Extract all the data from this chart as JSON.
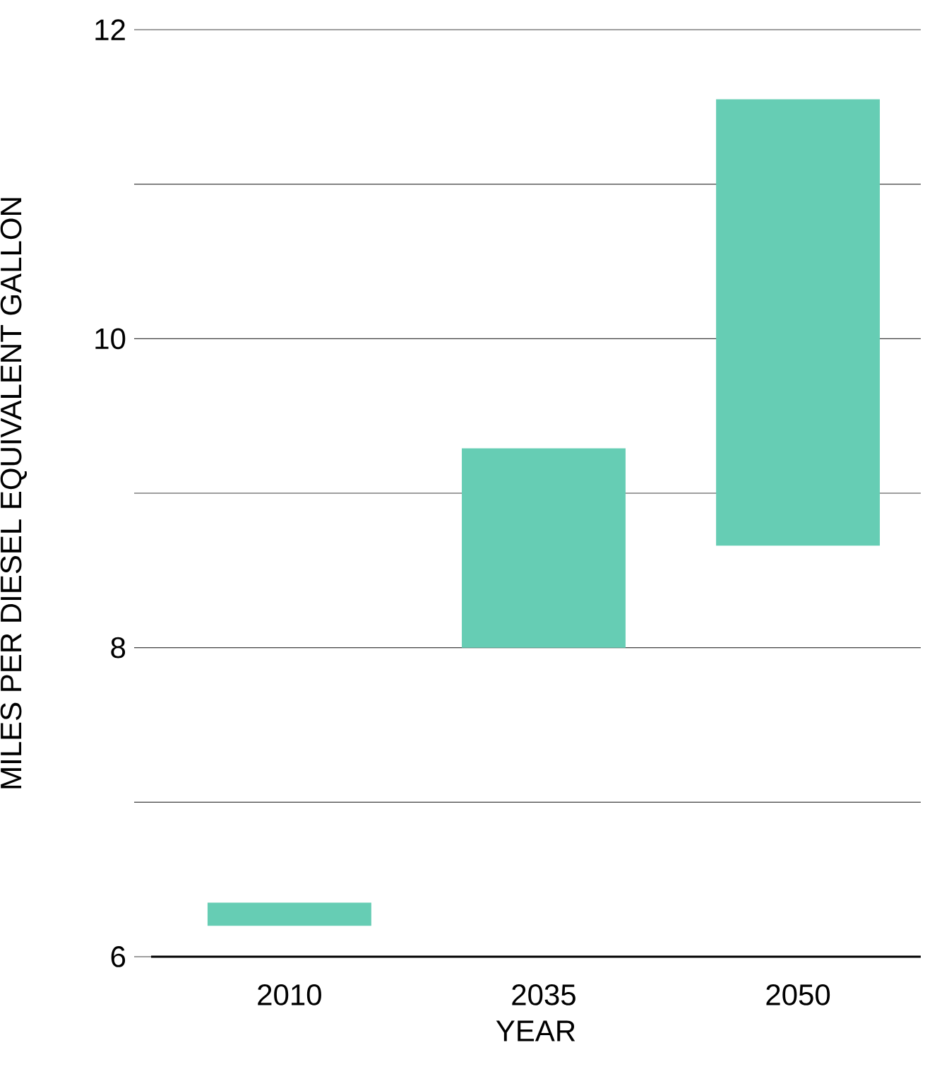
{
  "chart_data": {
    "type": "bar",
    "xlabel": "YEAR",
    "ylabel": "MILES PER DIESEL EQUIVALENT GALLON",
    "categories": [
      "2010",
      "2035",
      "2050"
    ],
    "values": [
      0.15,
      1.29,
      2.89
    ],
    "base": [
      6.2,
      8.0,
      8.66
    ],
    "color": "#66cdb4",
    "ylim": [
      6,
      12
    ],
    "yticks": [
      6,
      {
        "value": 7,
        "label": null
      },
      8,
      {
        "value": 9,
        "label": null
      },
      10,
      {
        "value": 11,
        "label": null
      },
      12
    ],
    "grid": "y"
  }
}
